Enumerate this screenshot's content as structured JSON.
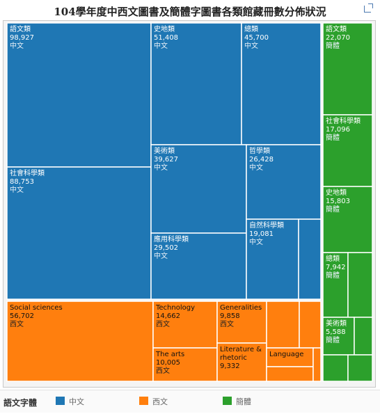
{
  "title": "104學年度中西文圖書及簡體字圖書各類館藏冊數分佈狀況",
  "legend": {
    "title": "語文字體",
    "items": [
      {
        "label": "中文",
        "color": "#1f77b4"
      },
      {
        "label": "西文",
        "color": "#ff7f0e"
      },
      {
        "label": "簡體",
        "color": "#2ca02c"
      }
    ]
  },
  "chart_data": {
    "type": "treemap",
    "title": "104學年度中西文圖書及簡體字圖書各類館藏冊數分佈狀況",
    "groups": [
      {
        "name": "中文",
        "color": "#1f77b4",
        "items": [
          {
            "name": "語文類",
            "value": 98927
          },
          {
            "name": "社會科學類",
            "value": 88753
          },
          {
            "name": "史地類",
            "value": 51408
          },
          {
            "name": "總類",
            "value": 45700
          },
          {
            "name": "美術類",
            "value": 39627
          },
          {
            "name": "應用科學類",
            "value": 29502
          },
          {
            "name": "哲學類",
            "value": 26428
          },
          {
            "name": "自然科學類",
            "value": 19081
          },
          {
            "name": "",
            "value": 9500
          }
        ]
      },
      {
        "name": "西文",
        "color": "#ff7f0e",
        "items": [
          {
            "name": "Social sciences",
            "value": 56702
          },
          {
            "name": "Technology",
            "value": 14662
          },
          {
            "name": "The arts",
            "value": 10005
          },
          {
            "name": "Generalities",
            "value": 9858
          },
          {
            "name": "Literature & rhetoric",
            "value": 9332
          },
          {
            "name": "",
            "value": 6300
          },
          {
            "name": "",
            "value": 4800
          },
          {
            "name": "Language",
            "value": 3700
          },
          {
            "name": "",
            "value": 2400
          },
          {
            "name": "",
            "value": 1200
          }
        ]
      },
      {
        "name": "簡體",
        "color": "#2ca02c",
        "items": [
          {
            "name": "語文類",
            "value": 22070
          },
          {
            "name": "社會科學類",
            "value": 17096
          },
          {
            "name": "史地類",
            "value": 15803
          },
          {
            "name": "總類",
            "value": 7942
          },
          {
            "name": "",
            "value": 6500
          },
          {
            "name": "美術類",
            "value": 5588
          },
          {
            "name": "",
            "value": 2600
          },
          {
            "name": "",
            "value": 2300
          },
          {
            "name": "",
            "value": 2100
          }
        ]
      }
    ]
  }
}
